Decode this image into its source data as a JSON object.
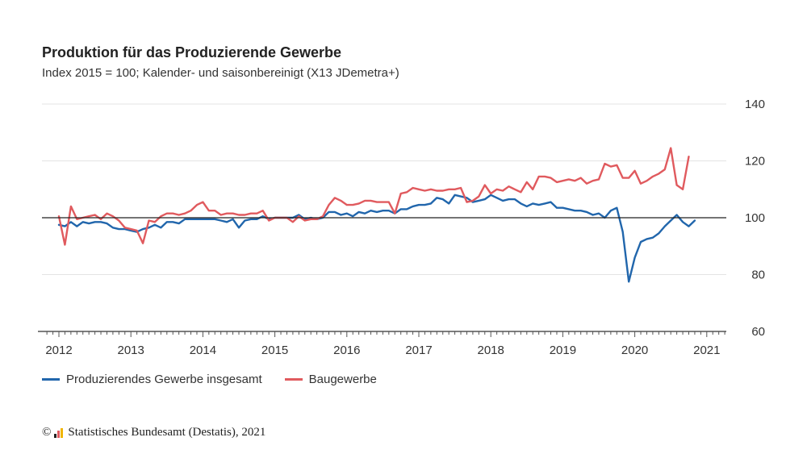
{
  "chart_data": {
    "type": "line",
    "title": "Produktion für das Produzierende Gewerbe",
    "subtitle": "Index 2015 = 100; Kalender- und saisonbereinigt (X13 JDemetra+)",
    "x_start": "2012-01",
    "x_end": "2021-03",
    "x_ticks": [
      "2012",
      "2013",
      "2014",
      "2015",
      "2016",
      "2017",
      "2018",
      "2019",
      "2020",
      "2021"
    ],
    "ylim": [
      60,
      140
    ],
    "y_ticks": [
      60,
      80,
      100,
      120,
      140
    ],
    "reference_line": 100,
    "grid": true,
    "legend_position": "bottom-left",
    "series": [
      {
        "name": "Produzierendes Gewerbe insgesamt",
        "color": "#2166ac",
        "values": [
          97.5,
          97.0,
          98.5,
          97.0,
          98.5,
          98.0,
          98.5,
          98.5,
          98.0,
          96.5,
          96.0,
          96.0,
          95.5,
          95.0,
          96.0,
          96.5,
          97.5,
          96.5,
          98.5,
          98.5,
          98.0,
          99.5,
          99.5,
          99.5,
          99.5,
          99.5,
          99.5,
          99.0,
          98.5,
          99.5,
          96.5,
          99.0,
          99.5,
          99.5,
          100.5,
          99.5,
          100.0,
          100.0,
          100.0,
          100.0,
          101.0,
          99.5,
          100.0,
          99.5,
          100.0,
          102.0,
          102.0,
          101.0,
          101.5,
          100.5,
          102.0,
          101.5,
          102.5,
          102.0,
          102.5,
          102.5,
          101.5,
          103.0,
          103.0,
          104.0,
          104.5,
          104.5,
          105.0,
          107.0,
          106.5,
          105.0,
          108.0,
          107.5,
          107.0,
          105.5,
          106.0,
          106.5,
          108.0,
          107.0,
          106.0,
          106.5,
          106.5,
          105.0,
          104.0,
          105.0,
          104.5,
          105.0,
          105.5,
          103.5,
          103.5,
          103.0,
          102.5,
          102.5,
          102.0,
          101.0,
          101.5,
          100.0,
          102.5,
          103.5,
          95.0,
          77.5,
          86.0,
          91.5,
          92.5,
          93.0,
          94.5,
          97.0,
          99.0,
          101.0,
          98.5,
          97.0,
          99.0
        ]
      },
      {
        "name": "Baugewerbe",
        "color": "#e05a5e",
        "values": [
          100.5,
          90.5,
          104.0,
          99.5,
          100.0,
          100.5,
          101.0,
          99.5,
          101.5,
          100.5,
          99.0,
          96.5,
          96.0,
          95.5,
          91.0,
          99.0,
          98.5,
          100.5,
          101.5,
          101.5,
          101.0,
          101.5,
          102.5,
          104.5,
          105.5,
          102.5,
          102.5,
          101.0,
          101.5,
          101.5,
          101.0,
          101.0,
          101.5,
          101.5,
          102.5,
          99.0,
          100.0,
          100.0,
          100.0,
          98.5,
          100.5,
          99.0,
          99.5,
          99.5,
          100.5,
          104.5,
          107.0,
          106.0,
          104.5,
          104.5,
          105.0,
          106.0,
          106.0,
          105.5,
          105.5,
          105.5,
          101.5,
          108.5,
          109.0,
          110.5,
          110.0,
          109.5,
          110.0,
          109.5,
          109.5,
          110.0,
          110.0,
          110.5,
          105.5,
          106.0,
          107.5,
          111.5,
          108.5,
          110.0,
          109.5,
          111.0,
          110.0,
          109.0,
          112.5,
          110.0,
          114.5,
          114.5,
          114.0,
          112.5,
          113.0,
          113.5,
          113.0,
          114.0,
          112.0,
          113.0,
          113.5,
          119.0,
          118.0,
          118.5,
          114.0,
          114.0,
          116.5,
          112.0,
          113.0,
          114.5,
          115.5,
          117.0,
          124.5,
          111.5,
          110.0,
          121.5
        ]
      }
    ]
  },
  "footer": {
    "copyright_symbol": "©",
    "source": "Statistisches Bundesamt (Destatis), 2021"
  }
}
